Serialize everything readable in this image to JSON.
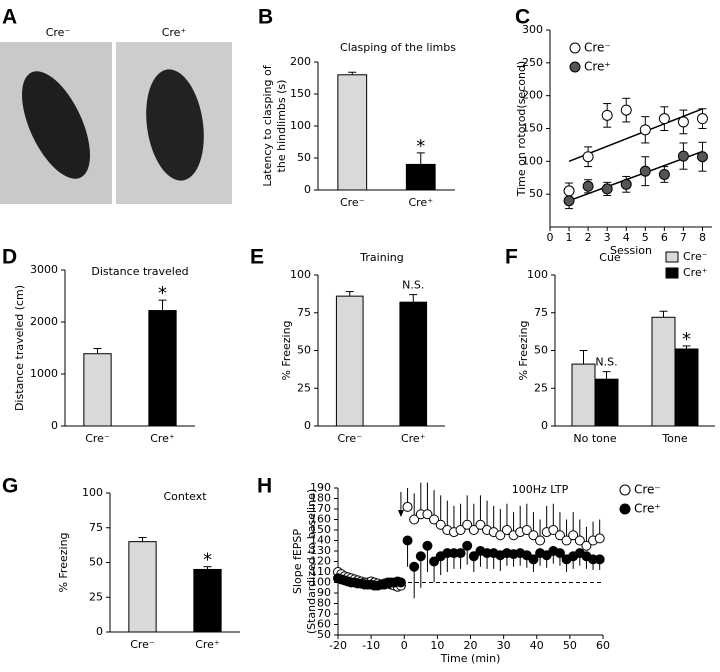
{
  "panel_a": {
    "label": "A",
    "captions": [
      "Cre⁻",
      "Cre⁺"
    ]
  },
  "chart_data": [
    {
      "type": "bar",
      "panel": "B",
      "title": "Clasping of the limbs",
      "ylabel": [
        "Latency to clasping of",
        "the hindlimbs (s)"
      ],
      "categories": [
        "Cre⁻",
        "Cre⁺"
      ],
      "values": [
        180,
        40
      ],
      "errors": [
        4,
        18
      ],
      "colors": [
        "#d9d9d9",
        "#000000"
      ],
      "value_annotations": [
        null,
        "*"
      ],
      "ylim": [
        0,
        200
      ],
      "yticks": [
        0,
        50,
        100,
        150,
        200
      ]
    },
    {
      "type": "scatter",
      "panel": "C",
      "ylabel": "Time on rotorod(second)",
      "xlabel": "Session",
      "x": [
        1,
        2,
        3,
        4,
        5,
        6,
        7,
        8
      ],
      "xlim": [
        0,
        8.5
      ],
      "xticks": [
        0,
        1,
        2,
        3,
        4,
        5,
        6,
        7,
        8
      ],
      "ylim": [
        0,
        300
      ],
      "yticks": [
        50,
        100,
        150,
        200,
        250,
        300
      ],
      "error_caps": true,
      "legend": "upper left",
      "series": [
        {
          "name": "Cre⁻",
          "color": "#ffffff",
          "values": [
            55,
            107,
            170,
            178,
            148,
            165,
            160,
            165
          ],
          "errors": [
            12,
            15,
            18,
            18,
            20,
            18,
            18,
            15
          ],
          "error_direction": "both",
          "trend": {
            "x": [
              1,
              8
            ],
            "values": [
              100,
              180
            ]
          }
        },
        {
          "name": "Cre⁺",
          "color": "#555555",
          "values": [
            40,
            62,
            58,
            65,
            85,
            80,
            108,
            107
          ],
          "errors": [
            12,
            10,
            10,
            12,
            22,
            12,
            20,
            22
          ],
          "error_direction": "both",
          "trend": {
            "x": [
              1,
              8
            ],
            "values": [
              40,
              115
            ]
          }
        }
      ]
    },
    {
      "type": "bar",
      "panel": "D",
      "title": "Distance traveled",
      "ylabel": "Distance traveled (cm)",
      "categories": [
        "Cre⁻",
        "Cre⁺"
      ],
      "values": [
        1390,
        2220
      ],
      "errors": [
        100,
        200
      ],
      "colors": [
        "#d9d9d9",
        "#000000"
      ],
      "value_annotations": [
        null,
        "*"
      ],
      "ylim": [
        0,
        3000
      ],
      "yticks": [
        0,
        1000,
        2000,
        3000
      ]
    },
    {
      "type": "bar",
      "panel": "E",
      "title": "Training",
      "ylabel": "% Freezing",
      "categories": [
        "Cre⁻",
        "Cre⁺"
      ],
      "values": [
        86,
        82
      ],
      "errors": [
        3,
        5
      ],
      "colors": [
        "#d9d9d9",
        "#000000"
      ],
      "value_annotations": [
        null,
        "N.S."
      ],
      "ylim": [
        0,
        100
      ],
      "yticks": [
        0,
        25,
        50,
        75,
        100
      ]
    },
    {
      "type": "bar",
      "panel": "F",
      "title": "Cue",
      "ylabel": "% Freezing",
      "legend": "upper right",
      "categories": [
        "No tone",
        "Tone"
      ],
      "ylim": [
        0,
        100
      ],
      "yticks": [
        0,
        25,
        50,
        75,
        100
      ],
      "series": [
        {
          "name": "Cre⁻",
          "color": "#d9d9d9",
          "values": [
            41,
            72
          ],
          "errors": [
            9,
            4
          ]
        },
        {
          "name": "Cre⁺",
          "color": "#000000",
          "values": [
            31,
            51
          ],
          "errors": [
            5,
            2
          ],
          "value_annotations": [
            "N.S.",
            "*"
          ]
        }
      ]
    },
    {
      "type": "bar",
      "panel": "G",
      "title": "Context",
      "ylabel": "% Freezing",
      "categories": [
        "Cre⁻",
        "Cre⁺"
      ],
      "values": [
        65,
        45
      ],
      "errors": [
        3,
        2
      ],
      "colors": [
        "#d9d9d9",
        "#000000"
      ],
      "value_annotations": [
        null,
        "*"
      ],
      "ylim": [
        0,
        100
      ],
      "yticks": [
        0,
        25,
        50,
        75,
        100
      ]
    },
    {
      "type": "scatter",
      "panel": "H",
      "title": "100Hz LTP",
      "ylabel": [
        "Slope fEPSP",
        "(Standardized to baseline)"
      ],
      "xlabel": "Time (min)",
      "x": [
        -20,
        -19,
        -18,
        -17,
        -16,
        -15,
        -14,
        -13,
        -12,
        -11,
        -10,
        -9,
        -8,
        -7,
        -6,
        -5,
        -4,
        -3,
        -2,
        -1,
        1,
        3,
        5,
        7,
        9,
        11,
        13,
        15,
        17,
        19,
        21,
        23,
        25,
        27,
        29,
        31,
        33,
        35,
        37,
        39,
        41,
        43,
        45,
        47,
        49,
        51,
        53,
        55,
        57,
        59
      ],
      "xlim": [
        -20,
        60
      ],
      "xticks": [
        -20,
        -10,
        0,
        10,
        20,
        30,
        40,
        50,
        60
      ],
      "ylim": [
        50,
        190
      ],
      "yticks": [
        50,
        60,
        70,
        80,
        90,
        100,
        110,
        120,
        130,
        140,
        150,
        160,
        170,
        180,
        190
      ],
      "reference_line": 100,
      "stimulus_x": -1,
      "error_caps": false,
      "legend": "upper right",
      "series": [
        {
          "name": "Cre⁻",
          "color": "#ffffff",
          "error_direction": "up",
          "values": [
            110,
            108,
            106,
            105,
            104,
            103,
            102,
            101,
            100,
            100,
            101,
            100,
            99,
            98,
            99,
            100,
            98,
            97,
            96,
            97,
            172,
            160,
            165,
            165,
            160,
            155,
            150,
            148,
            150,
            155,
            150,
            155,
            150,
            148,
            145,
            150,
            145,
            148,
            150,
            145,
            140,
            148,
            150,
            145,
            140,
            145,
            140,
            135,
            140,
            142
          ],
          "errors": [
            4,
            4,
            4,
            4,
            4,
            4,
            4,
            4,
            4,
            4,
            4,
            4,
            4,
            4,
            4,
            4,
            4,
            4,
            4,
            4,
            18,
            25,
            30,
            30,
            28,
            28,
            28,
            25,
            25,
            28,
            25,
            28,
            28,
            25,
            25,
            25,
            22,
            25,
            25,
            22,
            20,
            25,
            25,
            22,
            20,
            22,
            20,
            18,
            18,
            18
          ]
        },
        {
          "name": "Cre⁺",
          "color": "#000000",
          "error_direction": "down",
          "values": [
            104,
            103,
            102,
            101,
            100,
            100,
            99,
            99,
            98,
            98,
            98,
            97,
            97,
            98,
            98,
            99,
            100,
            100,
            101,
            100,
            140,
            115,
            125,
            135,
            120,
            125,
            128,
            128,
            128,
            135,
            125,
            130,
            128,
            128,
            126,
            128,
            127,
            128,
            126,
            122,
            128,
            126,
            130,
            128,
            122,
            125,
            128,
            125,
            122,
            122
          ],
          "errors": [
            4,
            4,
            4,
            4,
            4,
            4,
            4,
            4,
            4,
            4,
            4,
            4,
            4,
            4,
            4,
            4,
            4,
            4,
            4,
            4,
            25,
            30,
            30,
            25,
            20,
            18,
            18,
            15,
            15,
            18,
            15,
            15,
            15,
            15,
            15,
            12,
            12,
            12,
            12,
            12,
            12,
            12,
            12,
            12,
            12,
            12,
            12,
            12,
            10,
            10
          ]
        }
      ]
    }
  ]
}
